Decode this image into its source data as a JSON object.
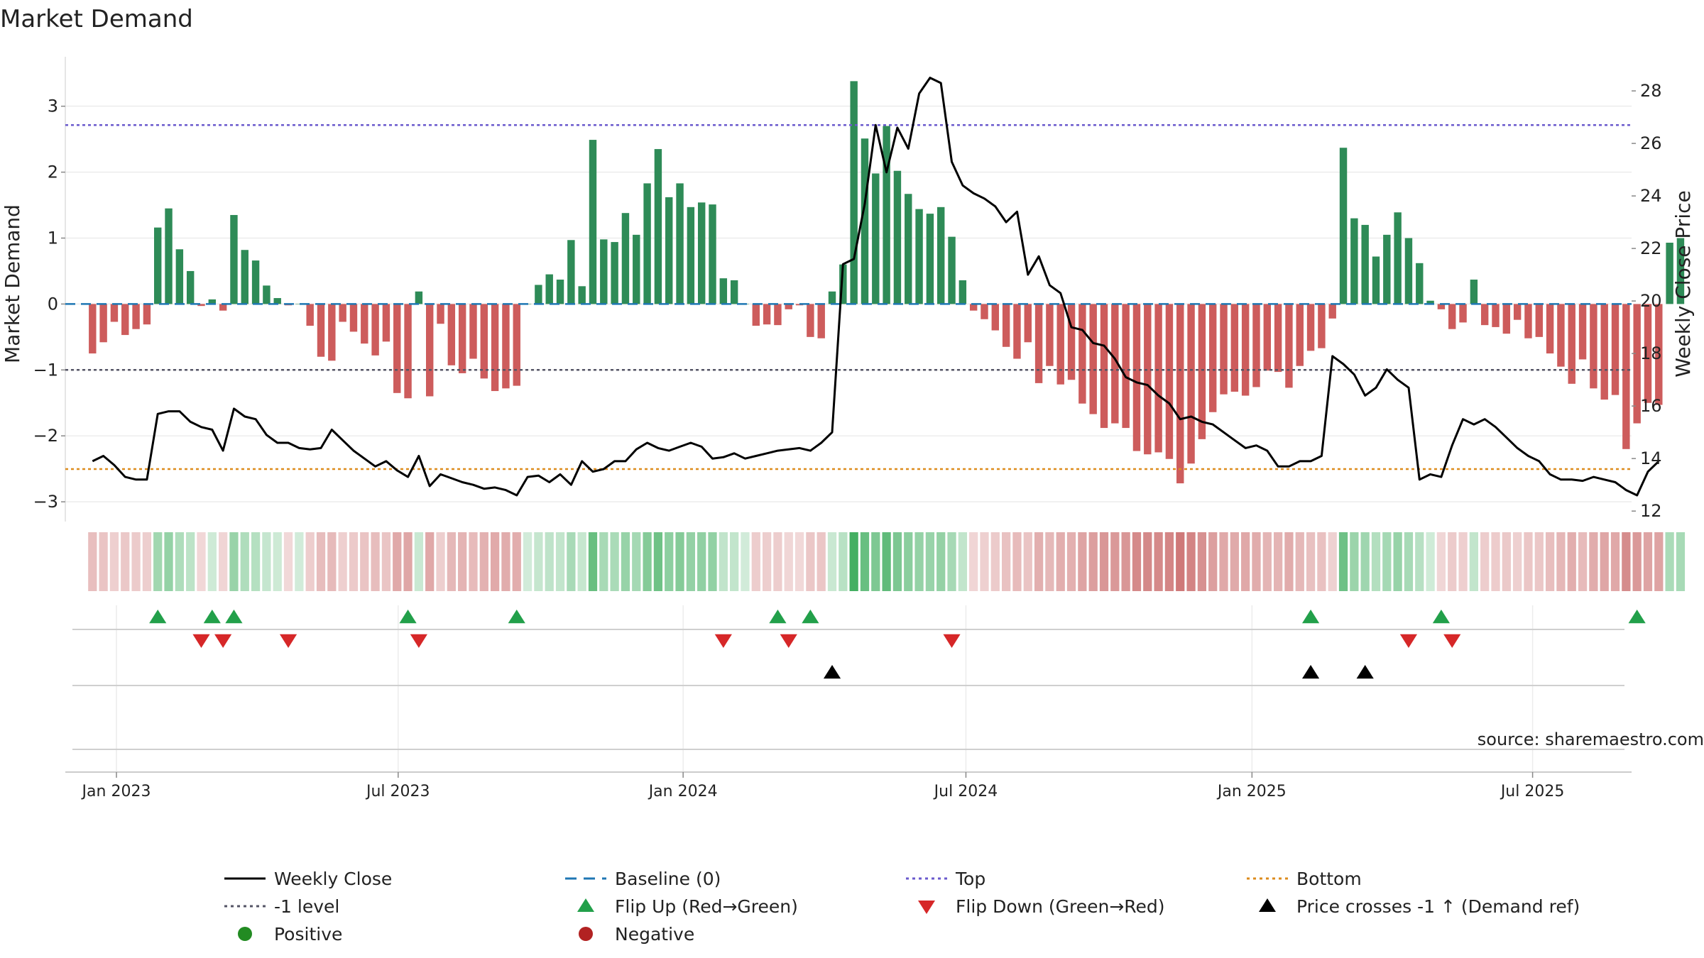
{
  "chart_data": {
    "type": "bar+line",
    "title": "Market Demand",
    "ylabel_left": "Market Demand",
    "ylabel_right": "Weekly Close Price",
    "source": "source: sharemaestro.com",
    "ylim_left": [
      -3.3,
      3.75
    ],
    "ylim_right": [
      11.6,
      29.3
    ],
    "yticks_left": [
      3,
      2,
      1,
      0,
      -1,
      -2,
      -3
    ],
    "ytick_labels_left": [
      "3",
      "2",
      "1",
      "0",
      "−1",
      "−2",
      "−3"
    ],
    "yticks_right": [
      28,
      26,
      24,
      22,
      20,
      18,
      16,
      14,
      12
    ],
    "ytick_labels_right": [
      "28",
      "26",
      "24",
      "22",
      "20",
      "18",
      "16",
      "14",
      "12"
    ],
    "xlim_weeks": [
      -2.5,
      141.5
    ],
    "xticks": [
      {
        "week": 2.2,
        "label": "Jan 2023"
      },
      {
        "week": 28.1,
        "label": "Jul 2023"
      },
      {
        "week": 54.3,
        "label": "Jan 2024"
      },
      {
        "week": 80.3,
        "label": "Jul 2024"
      },
      {
        "week": 106.6,
        "label": "Jan 2025"
      },
      {
        "week": 132.4,
        "label": "Jul 2025"
      }
    ],
    "reference_levels": {
      "top_price": 26.7,
      "bottom_price": 13.6,
      "minus_one_level": -1,
      "baseline": 0
    },
    "colors": {
      "positive": "#2e8b57",
      "negative": "#cd5c5c",
      "close_line": "#000000",
      "top": "#6a5acd",
      "bottom": "#dd8c1e",
      "minus_one": "#555566",
      "baseline": "#1f77b4",
      "flip_up": "#22a04a",
      "flip_down": "#d62728",
      "cross": "#000000",
      "legend_positive": "#228b22",
      "legend_negative": "#b22222"
    },
    "demand": [
      -0.75,
      -0.58,
      -0.27,
      -0.47,
      -0.38,
      -0.31,
      1.16,
      1.45,
      0.83,
      0.5,
      -0.03,
      0.07,
      -0.1,
      1.35,
      0.82,
      0.66,
      0.28,
      0.09,
      -0.02,
      0,
      -0.33,
      -0.8,
      -0.86,
      -0.27,
      -0.42,
      -0.6,
      -0.78,
      -0.57,
      -1.35,
      -1.43,
      0.19,
      -1.4,
      -0.3,
      -0.93,
      -1.05,
      -0.83,
      -1.13,
      -1.32,
      -1.28,
      -1.24,
      0,
      0.29,
      0.45,
      0.37,
      0.97,
      0.27,
      2.49,
      0.98,
      0.94,
      1.38,
      1.05,
      1.83,
      2.35,
      1.62,
      1.83,
      1.47,
      1.54,
      1.51,
      0.39,
      0.36,
      0,
      -0.33,
      -0.31,
      -0.32,
      -0.08,
      -0.02,
      -0.5,
      -0.52,
      0.19,
      0.6,
      3.38,
      2.51,
      1.98,
      2.7,
      2.02,
      1.67,
      1.44,
      1.37,
      1.47,
      1.02,
      0.36,
      -0.1,
      -0.23,
      -0.4,
      -0.65,
      -0.83,
      -0.58,
      -1.2,
      -0.94,
      -1.22,
      -1.15,
      -1.51,
      -1.67,
      -1.88,
      -1.81,
      -1.88,
      -2.23,
      -2.28,
      -2.25,
      -2.35,
      -2.72,
      -2.42,
      -2.05,
      -1.64,
      -1.37,
      -1.33,
      -1.39,
      -1.26,
      -1.01,
      -1.03,
      -1.27,
      -0.94,
      -0.71,
      -0.67,
      -0.22,
      2.37,
      1.3,
      1.2,
      0.72,
      1.05,
      1.39,
      1.0,
      0.62,
      0.05,
      -0.08,
      -0.38,
      -0.28,
      0.37,
      -0.32,
      -0.35,
      -0.45,
      -0.24,
      -0.52,
      -0.5,
      -0.75,
      -0.95,
      -1.21,
      -0.84,
      -1.28,
      -1.45,
      -1.38,
      -2.2,
      -1.81,
      -1.5,
      -1.53,
      0.93,
      1.0
    ],
    "close": [
      13.9,
      14.1,
      13.75,
      13.3,
      13.2,
      13.2,
      15.7,
      15.8,
      15.8,
      15.4,
      15.2,
      15.1,
      14.3,
      15.9,
      15.6,
      15.5,
      14.9,
      14.6,
      14.6,
      14.4,
      14.35,
      14.4,
      15.1,
      14.7,
      14.3,
      14.0,
      13.7,
      13.9,
      13.55,
      13.3,
      14.1,
      12.95,
      13.4,
      13.25,
      13.1,
      13.0,
      12.85,
      12.9,
      12.8,
      12.6,
      13.3,
      13.35,
      13.1,
      13.4,
      13.0,
      13.9,
      13.5,
      13.6,
      13.9,
      13.9,
      14.35,
      14.6,
      14.4,
      14.3,
      14.45,
      14.6,
      14.45,
      14.0,
      14.05,
      14.2,
      14.0,
      14.1,
      14.2,
      14.3,
      14.35,
      14.4,
      14.3,
      14.6,
      15.0,
      21.4,
      21.6,
      23.7,
      26.7,
      24.9,
      26.6,
      25.8,
      27.9,
      28.5,
      28.3,
      25.3,
      24.4,
      24.1,
      23.9,
      23.6,
      23.0,
      23.4,
      21.0,
      21.7,
      20.6,
      20.3,
      19.0,
      18.9,
      18.4,
      18.3,
      17.8,
      17.1,
      16.9,
      16.8,
      16.4,
      16.1,
      15.5,
      15.6,
      15.4,
      15.3,
      15.0,
      14.7,
      14.4,
      14.5,
      14.3,
      13.7,
      13.7,
      13.9,
      13.9,
      14.1,
      17.9,
      17.6,
      17.2,
      16.4,
      16.7,
      17.4,
      17.0,
      16.7,
      13.2,
      13.4,
      13.3,
      14.5,
      15.5,
      15.3,
      15.5,
      15.2,
      14.8,
      14.4,
      14.1,
      13.9,
      13.4,
      13.2,
      13.2,
      13.15,
      13.3,
      13.2,
      13.1,
      12.8,
      12.6,
      13.5,
      13.9
    ],
    "flip_up_weeks": [
      6,
      11,
      13,
      29,
      39,
      63,
      66,
      112,
      124,
      142
    ],
    "flip_down_weeks": [
      10,
      12,
      18,
      30,
      58,
      64,
      79,
      121,
      125
    ],
    "price_cross_weeks": [
      68,
      112,
      117
    ],
    "legend": [
      {
        "label": "Weekly Close",
        "marker": "line",
        "color": "#000000"
      },
      {
        "label": "Baseline (0)",
        "marker": "dash",
        "color": "#1f77b4"
      },
      {
        "label": "Top",
        "marker": "dot",
        "color": "#6a5acd"
      },
      {
        "label": "Bottom",
        "marker": "dot",
        "color": "#dd8c1e"
      },
      {
        "label": "-1 level",
        "marker": "dot",
        "color": "#555566"
      },
      {
        "label": "Flip Up (Red→Green)",
        "marker": "tri-up",
        "color": "#22a04a"
      },
      {
        "label": "Flip Down (Green→Red)",
        "marker": "tri-down",
        "color": "#d62728"
      },
      {
        "label": "Price crosses -1 ↑ (Demand ref)",
        "marker": "tri-up",
        "color": "#000000"
      },
      {
        "label": "Positive",
        "marker": "circle",
        "color": "#228b22"
      },
      {
        "label": "Negative",
        "marker": "circle",
        "color": "#b22222"
      }
    ]
  }
}
